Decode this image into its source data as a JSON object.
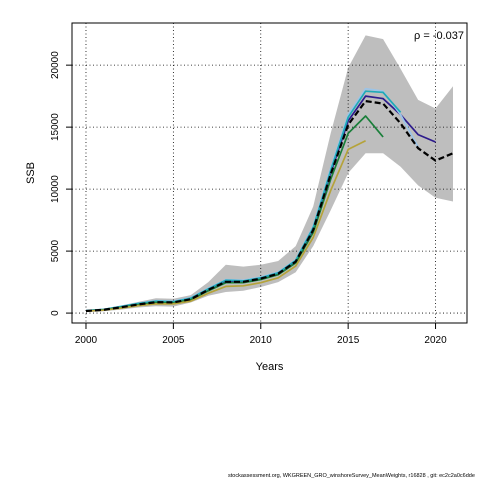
{
  "chart_data": {
    "type": "line",
    "title": "",
    "xlabel": "Years",
    "ylabel": "SSB",
    "xlim": [
      1999.2,
      2021.8
    ],
    "ylim": [
      -800,
      23400
    ],
    "x_ticks": [
      2000,
      2005,
      2010,
      2015,
      2020
    ],
    "y_ticks": [
      0,
      5000,
      10000,
      15000,
      20000
    ],
    "grid": true,
    "annotation": "ρ = -0.037",
    "band": {
      "x": [
        2000,
        2001,
        2002,
        2003,
        2004,
        2005,
        2006,
        2007,
        2008,
        2009,
        2010,
        2011,
        2012,
        2013,
        2014,
        2015,
        2016,
        2017,
        2018,
        2019,
        2020,
        2021
      ],
      "upper": [
        250,
        350,
        600,
        900,
        1200,
        1150,
        1450,
        2500,
        3900,
        3750,
        3900,
        4200,
        5400,
        8600,
        14500,
        19800,
        22400,
        22100,
        19700,
        17200,
        16500,
        18300
      ],
      "lower": [
        80,
        150,
        280,
        450,
        550,
        520,
        850,
        1400,
        1700,
        1800,
        2100,
        2500,
        3300,
        5400,
        8300,
        11300,
        12900,
        12900,
        11800,
        10300,
        9300,
        9000
      ],
      "color": "#bebebe"
    },
    "series": [
      {
        "x": [
          2000,
          2001,
          2002,
          2003,
          2004,
          2005,
          2006,
          2007,
          2008,
          2009,
          2010,
          2011,
          2012,
          2013,
          2014,
          2015,
          2016,
          2017,
          2018,
          2019,
          2020
        ],
        "values": [
          180,
          280,
          480,
          720,
          900,
          880,
          1150,
          1900,
          2550,
          2550,
          2800,
          3200,
          4200,
          6800,
          11300,
          15500,
          17500,
          17300,
          16000,
          14400,
          13800
        ],
        "color": "#2d1b8c",
        "dash": false
      },
      {
        "x": [
          2000,
          2001,
          2002,
          2003,
          2004,
          2005,
          2006,
          2007,
          2008,
          2009,
          2010,
          2011,
          2012,
          2013,
          2014,
          2015,
          2016,
          2017,
          2018,
          2019
        ],
        "values": [
          200,
          300,
          550,
          800,
          1000,
          960,
          1250,
          2000,
          2700,
          2650,
          2900,
          3300,
          4300,
          7000,
          11700,
          16000,
          18100,
          17900,
          16000,
          13400
        ],
        "color": "#9bc4e8",
        "dash": false
      },
      {
        "x": [
          2000,
          2001,
          2002,
          2003,
          2004,
          2005,
          2006,
          2007,
          2008,
          2009,
          2010,
          2011,
          2012,
          2013,
          2014,
          2015,
          2016,
          2017,
          2018
        ],
        "values": [
          190,
          290,
          520,
          770,
          960,
          920,
          1200,
          1950,
          2650,
          2600,
          2850,
          3250,
          4250,
          6900,
          11500,
          15800,
          17900,
          17800,
          16200
        ],
        "color": "#1faab8",
        "dash": false
      },
      {
        "x": [
          2000,
          2001,
          2002,
          2003,
          2004,
          2005,
          2006,
          2007,
          2008,
          2009,
          2010,
          2011,
          2012,
          2013,
          2014,
          2015,
          2016,
          2017
        ],
        "values": [
          170,
          260,
          450,
          680,
          850,
          830,
          1080,
          1800,
          2450,
          2450,
          2700,
          3100,
          4050,
          6500,
          10800,
          14500,
          15900,
          14200
        ],
        "color": "#1a7f3a",
        "dash": false
      },
      {
        "x": [
          2000,
          2001,
          2002,
          2003,
          2004,
          2005,
          2006,
          2007,
          2008,
          2009,
          2010,
          2011,
          2012,
          2013,
          2014,
          2015,
          2016
        ],
        "values": [
          150,
          230,
          400,
          600,
          750,
          740,
          970,
          1600,
          2150,
          2200,
          2450,
          2850,
          3800,
          6100,
          9900,
          13200,
          13900
        ],
        "color": "#b5a33a",
        "dash": false
      },
      {
        "x": [
          2000,
          2001,
          2002,
          2003,
          2004,
          2005,
          2006,
          2007,
          2008,
          2009,
          2010,
          2011,
          2012,
          2013,
          2014,
          2015,
          2016,
          2017,
          2018,
          2019,
          2020,
          2021
        ],
        "values": [
          165,
          265,
          470,
          700,
          880,
          860,
          1120,
          1880,
          2520,
          2520,
          2780,
          3180,
          4150,
          6700,
          11200,
          15200,
          17100,
          16900,
          15300,
          13300,
          12300,
          12900
        ],
        "color": "#000000",
        "dash": true
      }
    ]
  },
  "footer_text": "stockassessment.org,  WKGREEN_GRO_winshoreSurvey_MeanWeights,  r16828 ,  git:  ec2c2a0c6dde"
}
